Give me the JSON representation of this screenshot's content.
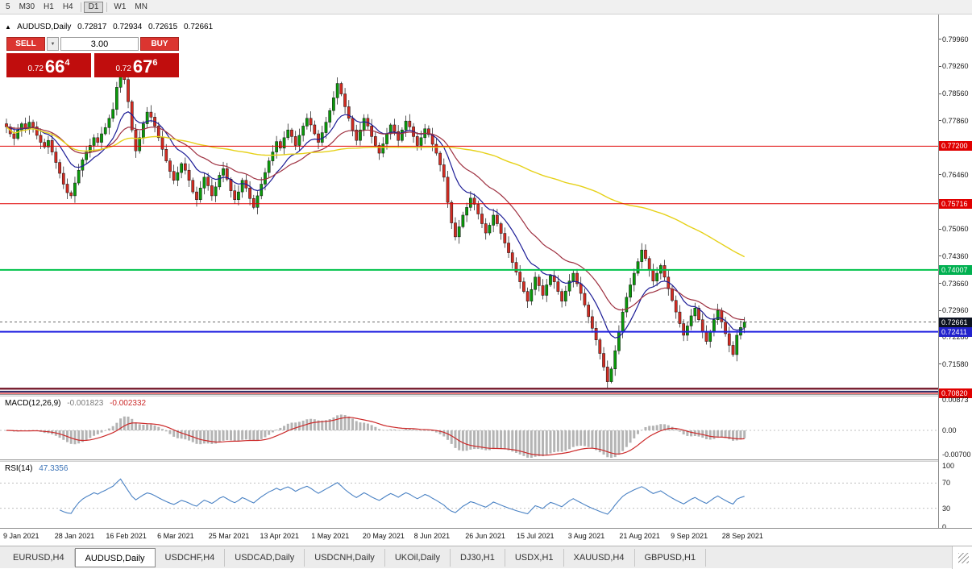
{
  "colors": {
    "up_candle": "#0a9a0a",
    "down_candle": "#d32c22",
    "candle_outline": "#111111",
    "ma_fast_blue": "#1c1c96",
    "ma_mid_darkred": "#9e3040",
    "ma_slow_yellow": "#e6d118",
    "macd_hist": "#b4b4b4",
    "macd_signal": "#cc2a2a",
    "rsi_line": "#4a82c4",
    "level_red": "#e00000",
    "level_green": "#00c24a",
    "level_blue": "#2020e0",
    "level_maroon": "#7a2233",
    "level_navy": "#2b2b66",
    "tag_green_bg": "#00b050",
    "tag_blue_bg": "#2222cc",
    "current_price_tag_bg": "#0c1220",
    "grid_dash": "#c0c0c0"
  },
  "toolbar": {
    "periods": [
      {
        "label": "5",
        "active": false
      },
      {
        "label": "M30",
        "active": false
      },
      {
        "label": "H1",
        "active": false
      },
      {
        "label": "H4",
        "active": false
      },
      {
        "label": "D1",
        "active": true
      },
      {
        "label": "W1",
        "active": false
      },
      {
        "label": "MN",
        "active": false
      }
    ]
  },
  "header": {
    "toggle": "▲",
    "symbol": "AUDUSD,Daily",
    "open": "0.72817",
    "high": "0.72934",
    "low": "0.72615",
    "close": "0.72661"
  },
  "trade_panel": {
    "sell_label": "SELL",
    "buy_label": "BUY",
    "dropdown": "▼",
    "volume": "3.00",
    "sell_price": {
      "prefix": "0.72",
      "big": "66",
      "sup": "4"
    },
    "buy_price": {
      "prefix": "0.72",
      "big": "67",
      "sup": "6"
    }
  },
  "price_axis": {
    "plain": [
      {
        "text": "0.79960",
        "price": 0.7996
      },
      {
        "text": "0.79260",
        "price": 0.7926
      },
      {
        "text": "0.78560",
        "price": 0.7856
      },
      {
        "text": "0.77860",
        "price": 0.7786
      },
      {
        "text": "0.76460",
        "price": 0.7646
      },
      {
        "text": "0.75060",
        "price": 0.7506
      },
      {
        "text": "0.74360",
        "price": 0.7436
      },
      {
        "text": "0.73660",
        "price": 0.7366
      },
      {
        "text": "0.72960",
        "price": 0.7296
      },
      {
        "text": "0.72280",
        "price": 0.7228
      },
      {
        "text": "0.71580",
        "price": 0.7158
      }
    ],
    "tags": [
      {
        "text": "0.77200",
        "price": 0.772,
        "bg": "#e00000"
      },
      {
        "text": "0.75716",
        "price": 0.75716,
        "bg": "#e00000"
      },
      {
        "text": "0.74007",
        "price": 0.74007,
        "bg": "#00b050"
      },
      {
        "text": "0.72661",
        "price": 0.72661,
        "bg": "#0c1220"
      },
      {
        "text": "0.72411",
        "price": 0.72411,
        "bg": "#2222cc"
      },
      {
        "text": "0.70820",
        "price": 0.7082,
        "bg": "#e00000"
      }
    ]
  },
  "date_axis": [
    "9 Jan 2021",
    "28 Jan 2021",
    "16 Feb 2021",
    "6 Mar 2021",
    "25 Mar 2021",
    "13 Apr 2021",
    "1 May 2021",
    "20 May 2021",
    "8 Jun 2021",
    "26 Jun 2021",
    "15 Jul 2021",
    "3 Aug 2021",
    "21 Aug 2021",
    "9 Sep 2021",
    "28 Sep 2021"
  ],
  "macd_panel": {
    "title": "MACD(12,26,9)",
    "value_main": "-0.001823",
    "value_signal": "-0.002332",
    "axis": [
      {
        "text": "0.00873",
        "value": 0.00873
      },
      {
        "text": "0.00",
        "value": 0
      },
      {
        "text": "-0.00700",
        "value": -0.007
      }
    ]
  },
  "rsi_panel": {
    "title": "RSI(14)",
    "value": "47.3356",
    "axis": [
      {
        "text": "100",
        "value": 100
      },
      {
        "text": "70",
        "value": 70
      },
      {
        "text": "30",
        "value": 30
      },
      {
        "text": "0",
        "value": 0
      }
    ],
    "levels": [
      70,
      30
    ]
  },
  "tabs": [
    {
      "label": "EURUSD,H4",
      "active": false
    },
    {
      "label": "AUDUSD,Daily",
      "active": true
    },
    {
      "label": "USDCHF,H4",
      "active": false
    },
    {
      "label": "USDCAD,Daily",
      "active": false
    },
    {
      "label": "USDCNH,Daily",
      "active": false
    },
    {
      "label": "UKOil,Daily",
      "active": false
    },
    {
      "label": "DJ30,H1",
      "active": false
    },
    {
      "label": "USDX,H1",
      "active": false
    },
    {
      "label": "XAUUSD,H4",
      "active": false
    },
    {
      "label": "GBPUSD,H1",
      "active": false
    }
  ],
  "chart_data": {
    "type": "candlestick",
    "symbol": "AUDUSD",
    "timeframe": "Daily",
    "ohlc_header": {
      "open": 0.72817,
      "high": 0.72934,
      "low": 0.72615,
      "close": 0.72661
    },
    "price_range": {
      "top": 0.806,
      "bottom": 0.708
    },
    "current_price": 0.72661,
    "closes": [
      0.777,
      0.7752,
      0.774,
      0.7762,
      0.7778,
      0.7765,
      0.7782,
      0.777,
      0.7748,
      0.773,
      0.7718,
      0.7735,
      0.7705,
      0.7678,
      0.765,
      0.7622,
      0.76,
      0.7592,
      0.7625,
      0.7658,
      0.7685,
      0.7705,
      0.7722,
      0.7742,
      0.773,
      0.7752,
      0.7768,
      0.7792,
      0.7815,
      0.7872,
      0.794,
      0.7892,
      0.7835,
      0.7762,
      0.7708,
      0.7742,
      0.7778,
      0.7808,
      0.7795,
      0.7772,
      0.7742,
      0.7712,
      0.7682,
      0.7655,
      0.7632,
      0.7652,
      0.7675,
      0.7658,
      0.7632,
      0.7602,
      0.7582,
      0.7612,
      0.764,
      0.7618,
      0.7592,
      0.7615,
      0.7645,
      0.7662,
      0.7635,
      0.7605,
      0.7582,
      0.7602,
      0.7632,
      0.7612,
      0.7585,
      0.7562,
      0.7592,
      0.7622,
      0.7652,
      0.7682,
      0.7705,
      0.7732,
      0.7715,
      0.7742,
      0.7762,
      0.7745,
      0.7722,
      0.7748,
      0.7772,
      0.7792,
      0.7775,
      0.7752,
      0.773,
      0.7755,
      0.7782,
      0.7812,
      0.7845,
      0.7882,
      0.7855,
      0.7822,
      0.7792,
      0.7762,
      0.7735,
      0.7762,
      0.7792,
      0.7772,
      0.7745,
      0.7722,
      0.7702,
      0.7726,
      0.7752,
      0.7775,
      0.7758,
      0.7735,
      0.7762,
      0.7785,
      0.777,
      0.7745,
      0.7722,
      0.7742,
      0.7765,
      0.775,
      0.7725,
      0.7702,
      0.7672,
      0.764,
      0.7575,
      0.7522,
      0.7486,
      0.7512,
      0.7542,
      0.7562,
      0.7586,
      0.757,
      0.7545,
      0.752,
      0.7496,
      0.7516,
      0.7542,
      0.752,
      0.7495,
      0.747,
      0.7445,
      0.742,
      0.7395,
      0.737,
      0.7345,
      0.732,
      0.735,
      0.7382,
      0.736,
      0.7335,
      0.7362,
      0.7386,
      0.737,
      0.7345,
      0.732,
      0.7346,
      0.7372,
      0.7392,
      0.7365,
      0.734,
      0.731,
      0.728,
      0.725,
      0.722,
      0.7185,
      0.715,
      0.7112,
      0.7145,
      0.7192,
      0.724,
      0.7292,
      0.733,
      0.7362,
      0.7392,
      0.7422,
      0.7452,
      0.743,
      0.74,
      0.7372,
      0.7392,
      0.7412,
      0.7382,
      0.7352,
      0.7322,
      0.7292,
      0.7262,
      0.7232,
      0.7256,
      0.7282,
      0.7302,
      0.7272,
      0.7242,
      0.7216,
      0.7242,
      0.7272,
      0.7296,
      0.7266,
      0.7236,
      0.7206,
      0.7182,
      0.7232,
      0.7252,
      0.7266
    ],
    "moving_averages": [
      {
        "period": 12,
        "method": "ema",
        "color_key": "ma_fast_blue"
      },
      {
        "period": 26,
        "method": "ema",
        "color_key": "ma_mid_darkred"
      },
      {
        "period": 100,
        "method": "sma",
        "color_key": "ma_slow_yellow"
      }
    ],
    "hlines": [
      {
        "price": 0.772,
        "color_key": "level_red",
        "width": 1
      },
      {
        "price": 0.75716,
        "color_key": "level_red",
        "width": 1
      },
      {
        "price": 0.74007,
        "color_key": "level_green",
        "width": 2
      },
      {
        "price": 0.72411,
        "color_key": "level_blue",
        "width": 2
      },
      {
        "price": 0.7094,
        "color_key": "level_maroon",
        "width": 2.5
      },
      {
        "price": 0.70865,
        "color_key": "level_navy",
        "width": 2
      },
      {
        "price": 0.7082,
        "color_key": "level_red",
        "width": 1
      }
    ],
    "macd": {
      "fast": 12,
      "slow": 26,
      "signal": 9,
      "last_main": -0.001823,
      "last_signal": -0.002332
    },
    "rsi": {
      "period": 14,
      "last": 47.3356
    }
  }
}
